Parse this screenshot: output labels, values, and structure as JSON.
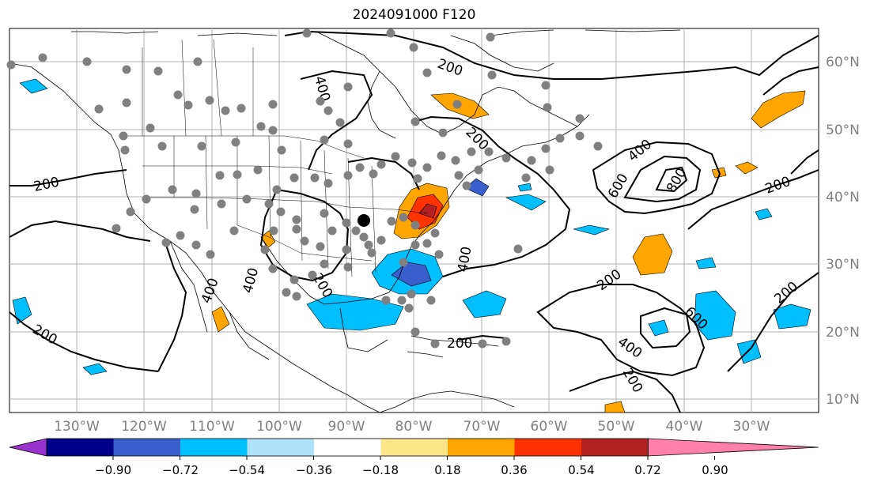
{
  "title": "2024091000 F120",
  "map": {
    "lon_labels": [
      "130°W",
      "120°W",
      "110°W",
      "100°W",
      "90°W",
      "80°W",
      "70°W",
      "60°W",
      "50°W",
      "40°W",
      "30°W"
    ],
    "lat_labels": [
      "60°N",
      "50°N",
      "40°N",
      "30°N",
      "20°N",
      "10°N"
    ],
    "contour_labels": [
      "200",
      "200",
      "200",
      "200",
      "200",
      "200",
      "200",
      "200",
      "200",
      "200",
      "400",
      "400",
      "400",
      "400",
      "400",
      "400",
      "600",
      "600",
      "800"
    ],
    "label_color": "#808080",
    "station_color": "#808080",
    "highlight_station_color": "#000000"
  },
  "colorbar": {
    "ticks": [
      "−0.90",
      "−0.72",
      "−0.54",
      "−0.36",
      "−0.18",
      "0.18",
      "0.36",
      "0.54",
      "0.72",
      "0.90"
    ],
    "colors": [
      "#9933cc",
      "#00008b",
      "#3a5fcd",
      "#00bfff",
      "#aee2fa",
      "#ffffff",
      "#fde68a",
      "#ffa500",
      "#ff3300",
      "#b22222",
      "#ff80aa"
    ]
  }
}
